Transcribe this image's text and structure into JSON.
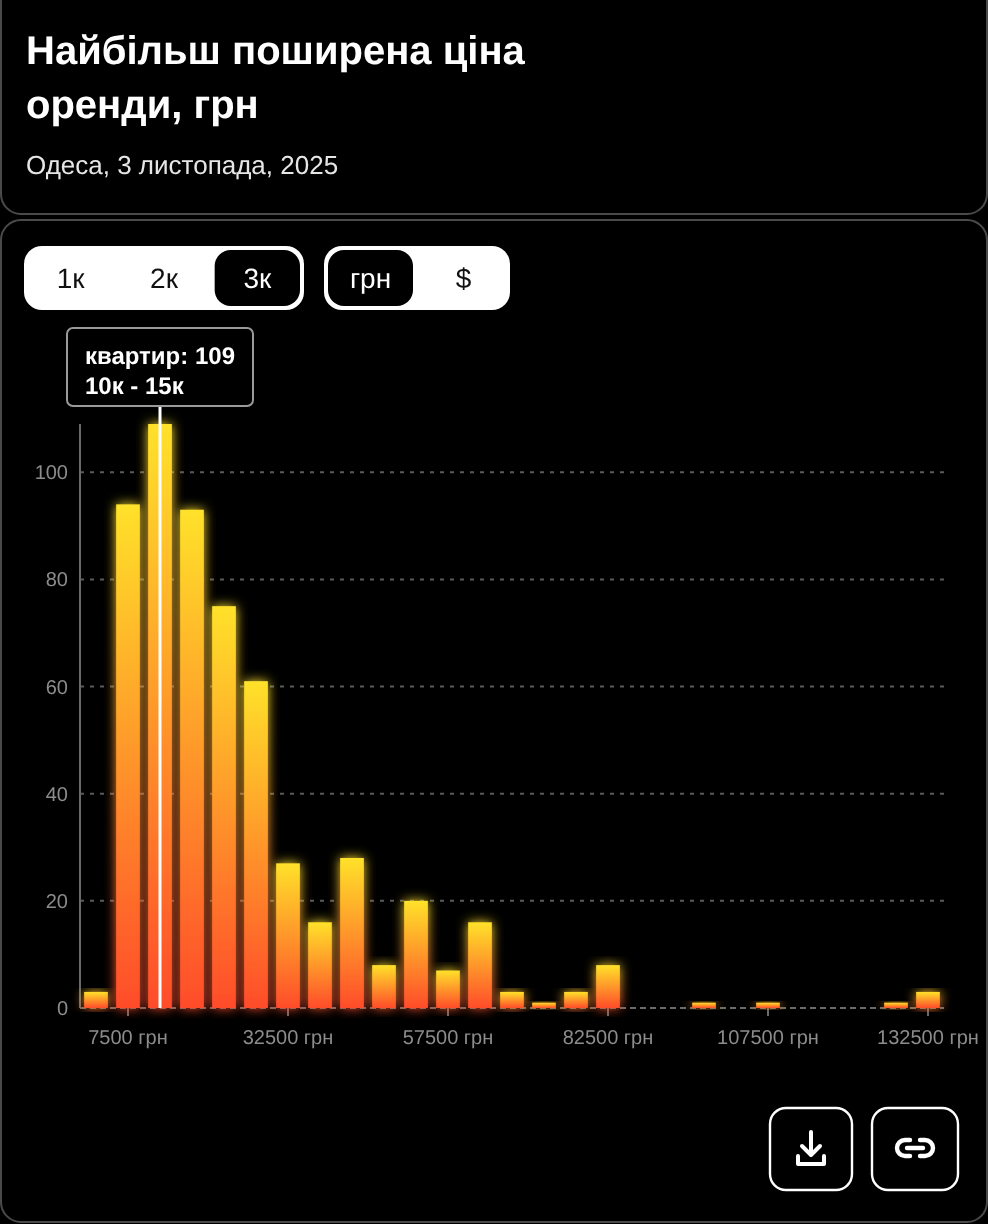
{
  "chart_data": {
    "type": "histogram",
    "title": "Найбільш поширена ціна оренди, грн",
    "subtitle": "Одеса, 3 листопада, 2025",
    "bins": [
      0,
      5000,
      10000,
      15000,
      20000,
      25000,
      30000,
      35000,
      40000,
      45000,
      50000,
      55000,
      60000,
      65000,
      70000,
      75000,
      80000,
      85000,
      90000,
      95000,
      100000,
      105000,
      110000,
      115000,
      120000,
      125000,
      130000,
      135000
    ],
    "values": [
      3,
      94,
      109,
      93,
      75,
      61,
      27,
      16,
      28,
      8,
      20,
      7,
      16,
      3,
      1,
      3,
      8,
      0,
      0,
      1,
      0,
      1,
      0,
      0,
      0,
      1,
      3
    ],
    "color": "#ff9a2b",
    "xlim": [
      0,
      135000
    ],
    "xticks": [
      {
        "value": 7500,
        "label": "7500 грн"
      },
      {
        "value": 32500,
        "label": "32500 грн"
      },
      {
        "value": 57500,
        "label": "57500 грн"
      },
      {
        "value": 82500,
        "label": "82500 грн"
      },
      {
        "value": 107500,
        "label": "107500 грн"
      },
      {
        "value": 132500,
        "label": "132500 грн"
      }
    ],
    "ylim": [
      0,
      109
    ],
    "yticks": [
      0,
      20,
      40,
      60,
      80,
      100
    ],
    "grid": "y",
    "ref_lines": [
      {
        "axis": "x",
        "value": 12500,
        "color": "#ffffff"
      }
    ],
    "annotations": [
      {
        "text": "квартир: 109\n10к - 15к",
        "x": 12500,
        "y": 109
      },
      "1к",
      "2к",
      "3к",
      "грн",
      "$"
    ]
  }
}
